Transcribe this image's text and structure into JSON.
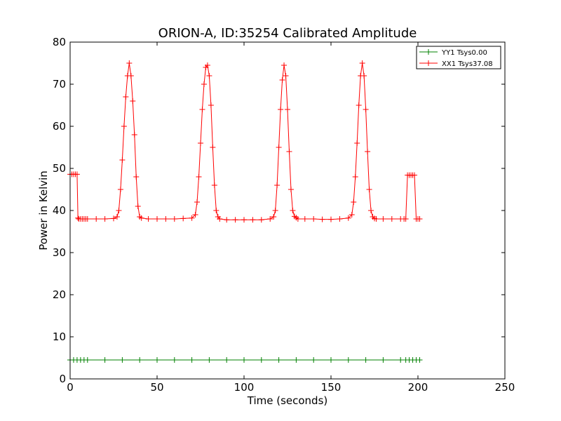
{
  "chart_data": {
    "type": "line",
    "title": "ORION-A, ID:35254 Calibrated Amplitude",
    "xlabel": "Time (seconds)",
    "ylabel": "Power in Kelvin",
    "xlim": [
      0,
      250
    ],
    "ylim": [
      0,
      80
    ],
    "xticks": [
      0,
      50,
      100,
      150,
      200,
      250
    ],
    "yticks": [
      0,
      10,
      20,
      30,
      40,
      50,
      60,
      70,
      80
    ],
    "grid": false,
    "legend_position": "top-right",
    "series": [
      {
        "name": "YY1 Tsys0.00",
        "color": "#008000",
        "marker": "+",
        "segments": [
          {
            "x": [
              0,
              2,
              4,
              6,
              8,
              10,
              20,
              30,
              40,
              50,
              60,
              70,
              80,
              90,
              100,
              110,
              120,
              130,
              140,
              150,
              160,
              170,
              180,
              190,
              193,
              195,
              197,
              199,
              201
            ],
            "y": [
              4.5,
              4.5,
              4.5,
              4.5,
              4.5,
              4.5,
              4.5,
              4.5,
              4.5,
              4.5,
              4.5,
              4.5,
              4.5,
              4.5,
              4.5,
              4.5,
              4.5,
              4.5,
              4.5,
              4.5,
              4.5,
              4.5,
              4.5,
              4.5,
              4.5,
              4.5,
              4.5,
              4.5,
              4.5
            ]
          }
        ]
      },
      {
        "name": "XX1 Tsys37.08",
        "color": "#ff0000",
        "marker": "+",
        "segments": [
          {
            "x": [
              0,
              1,
              2,
              3,
              4,
              4.5,
              5,
              6,
              7,
              8,
              9,
              10,
              15,
              20,
              25,
              27,
              28,
              29,
              30,
              31,
              32,
              33,
              34,
              35,
              36,
              37,
              38,
              39,
              40,
              41,
              45,
              50,
              55,
              60,
              65,
              70,
              72,
              73,
              74,
              75,
              76,
              77,
              78,
              79,
              80,
              81,
              82,
              83,
              84,
              85,
              86,
              90,
              95,
              100,
              105,
              110,
              115,
              117,
              118,
              119,
              120,
              121,
              122,
              123,
              124,
              125,
              126,
              127,
              128,
              129,
              130,
              131,
              135,
              140,
              145,
              150,
              155,
              160,
              162,
              163,
              164,
              165,
              166,
              167,
              168,
              169,
              170,
              171,
              172,
              173,
              174,
              175,
              176,
              180,
              185,
              190,
              192,
              193,
              194,
              195,
              196,
              197,
              198,
              199,
              200,
              201
            ],
            "y": [
              48.6,
              48.6,
              48.6,
              48.6,
              48.6,
              38.2,
              38.0,
              38.0,
              38.0,
              38.0,
              38.0,
              38.0,
              38.0,
              38.0,
              38.1,
              38.5,
              40.0,
              45.0,
              52.0,
              60.0,
              67.0,
              72.0,
              75.0,
              72.0,
              66.0,
              58.0,
              48.0,
              41.0,
              38.5,
              38.2,
              38.0,
              38.0,
              38.0,
              38.0,
              38.1,
              38.2,
              39.0,
              42.0,
              48.0,
              56.0,
              64.0,
              70.0,
              74.0,
              74.5,
              72.0,
              65.0,
              55.0,
              46.0,
              40.0,
              38.5,
              38.0,
              37.8,
              37.8,
              37.8,
              37.8,
              37.8,
              38.0,
              38.5,
              40.0,
              46.0,
              55.0,
              64.0,
              71.0,
              74.5,
              72.0,
              64.0,
              54.0,
              45.0,
              40.0,
              38.6,
              38.3,
              38.0,
              38.0,
              38.0,
              37.9,
              37.9,
              38.0,
              38.2,
              39.0,
              42.0,
              48.0,
              56.0,
              65.0,
              72.0,
              75.0,
              72.0,
              64.0,
              54.0,
              45.0,
              40.0,
              38.5,
              38.1,
              38.0,
              38.0,
              38.0,
              38.0,
              38.0,
              38.0,
              48.4,
              48.4,
              48.4,
              48.4,
              48.4,
              38.0,
              38.0,
              38.0
            ]
          }
        ]
      }
    ]
  }
}
